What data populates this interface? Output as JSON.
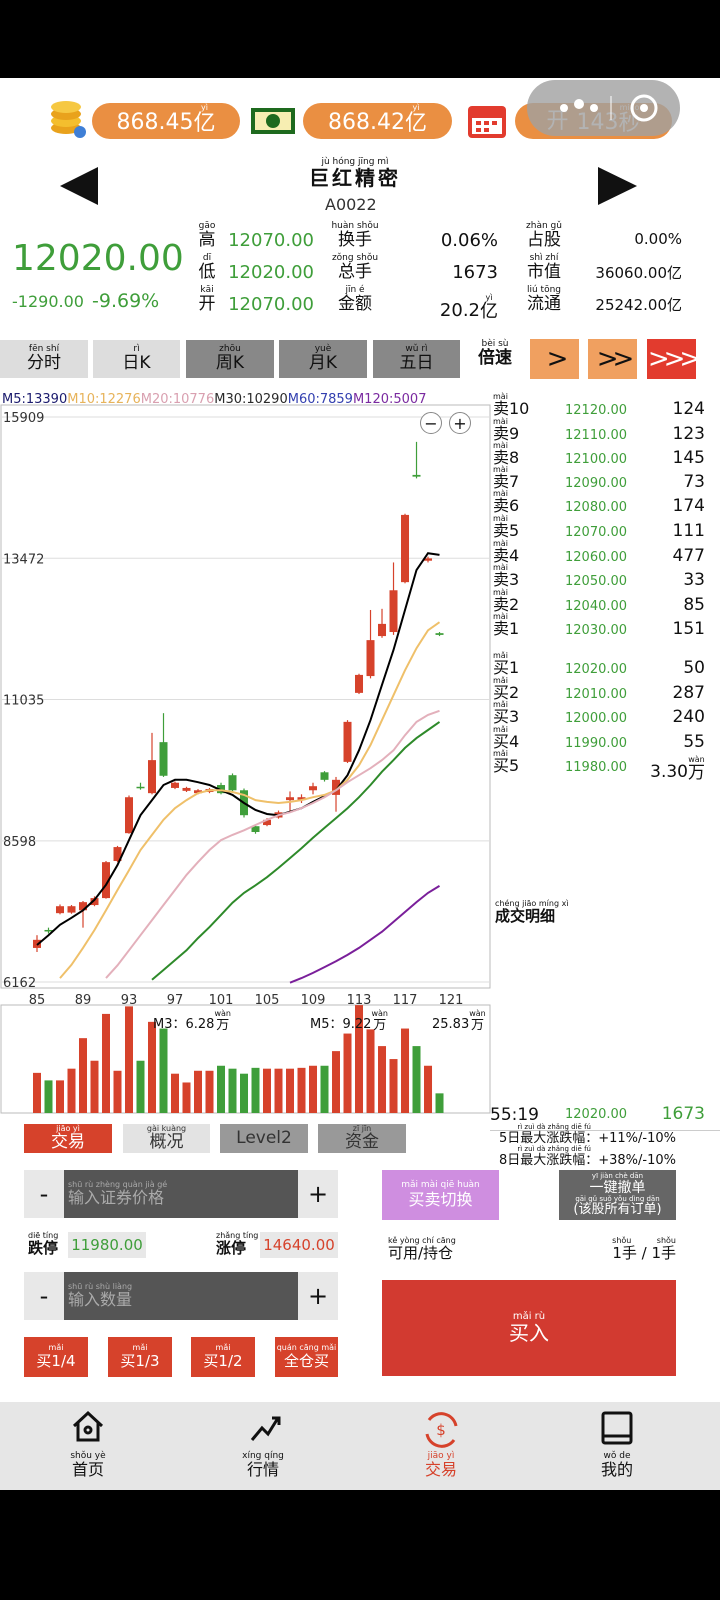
{
  "status_pills": [
    {
      "text": "868.45",
      "unit_py": "yì",
      "unit": "亿"
    },
    {
      "text": "868.42",
      "unit_py": "yì",
      "unit": "亿"
    },
    {
      "prefix": "开",
      "text": "143",
      "unit_py": "miǎo",
      "unit": "秒"
    }
  ],
  "stock": {
    "py": "jù hóng jīng mì",
    "text": "巨红精密",
    "code": "A0022"
  },
  "quote": {
    "price": "12020.00",
    "change": "-1290.00",
    "change_pct": "-9.69%",
    "stats": [
      [
        {
          "py": "gāo",
          "text": "高",
          "value": "12070.00"
        },
        {
          "py": "huàn shǒu",
          "text": "换手",
          "value": "0.06%"
        },
        {
          "py": "zhàn gǔ",
          "text": "占股",
          "value": "0.00%"
        }
      ],
      [
        {
          "py": "dī",
          "text": "低",
          "value": "12020.00"
        },
        {
          "py": "zǒng shǒu",
          "text": "总手",
          "value": "1673"
        },
        {
          "py": "shì zhí",
          "text": "市值",
          "value": "36060.00亿"
        }
      ],
      [
        {
          "py": "kāi",
          "text": "开",
          "value": "12070.00"
        },
        {
          "py": "jīn é",
          "text": "金额",
          "value": "20.2",
          "unit_py": "yì",
          "unit": "亿"
        },
        {
          "py": "liú tōng",
          "text": "流通",
          "value": "25242.00亿"
        }
      ]
    ]
  },
  "tabs": [
    {
      "py": "fēn shí",
      "text": "分时"
    },
    {
      "py": "rì",
      "text": "日K"
    },
    {
      "py": "zhōu",
      "text": "周K"
    },
    {
      "py": "yuè",
      "text": "月K"
    },
    {
      "py": "wǔ rì",
      "text": "五日"
    }
  ],
  "speed": {
    "py": "bèi sù",
    "text": "倍速"
  },
  "speed_buttons": [
    ">",
    ">>",
    ">>>"
  ],
  "zoom_buttons": [
    "−",
    "+"
  ],
  "chart_data": [
    {
      "type": "candlestick",
      "ma_legend": [
        {
          "text": "M5:13390",
          "color": "#1b1b6e"
        },
        {
          "text": "M10:12276",
          "color": "#e7b35a"
        },
        {
          "text": "M20:10776",
          "color": "#d9a0b0"
        },
        {
          "text": "M30:10290",
          "color": "#2a2a2a"
        },
        {
          "text": "M60:7859",
          "color": "#3340b0"
        },
        {
          "text": "M120:5007",
          "color": "#7a2aa0"
        }
      ],
      "up_color": "#d6422b",
      "down_color": "#3f9e3a",
      "grid": true,
      "xlim": [
        81.87,
        124.39
      ],
      "xticks": [
        85,
        89,
        93,
        97,
        101,
        105,
        109,
        113,
        117,
        121
      ],
      "ylim": [
        6059,
        16116
      ],
      "yticks": [
        6162,
        8598,
        11035,
        13472,
        15909
      ],
      "x": [
        85,
        86,
        87,
        88,
        89,
        90,
        91,
        92,
        93,
        94,
        95,
        96,
        97,
        98,
        99,
        100,
        101,
        102,
        103,
        104,
        105,
        106,
        107,
        108,
        109,
        110,
        111,
        112,
        113,
        114,
        115,
        116,
        117,
        118,
        119,
        120
      ],
      "open": [
        6750,
        7060,
        7350,
        7360,
        7400,
        7490,
        7610,
        8250,
        8730,
        9530,
        9420,
        10300,
        9510,
        9460,
        9420,
        9440,
        9560,
        9730,
        9470,
        8850,
        8870,
        9000,
        9300,
        9300,
        9470,
        9780,
        9390,
        9960,
        11150,
        11440,
        12130,
        12200,
        13060,
        14910,
        13430,
        12180
      ],
      "high": [
        6970,
        7100,
        7500,
        7490,
        7560,
        7640,
        8250,
        8510,
        9380,
        9600,
        10460,
        10800,
        9620,
        9530,
        9490,
        9510,
        9600,
        9760,
        9500,
        8870,
        8990,
        9120,
        9450,
        9400,
        9600,
        9800,
        9700,
        10680,
        11480,
        12580,
        12600,
        13400,
        14240,
        15480,
        13500,
        12200
      ],
      "low": [
        6680,
        7000,
        7330,
        7340,
        7100,
        7470,
        7600,
        8230,
        8720,
        9480,
        9400,
        9700,
        9490,
        9440,
        9400,
        9420,
        9400,
        9450,
        9000,
        8720,
        8850,
        8980,
        9100,
        9250,
        9400,
        9620,
        9100,
        9940,
        11130,
        11400,
        12100,
        12150,
        13040,
        14850,
        13400,
        12130
      ],
      "close": [
        6890,
        7050,
        7470,
        7470,
        7540,
        7610,
        8230,
        8490,
        9350,
        9520,
        9990,
        9720,
        9600,
        9510,
        9470,
        9490,
        9420,
        9470,
        9040,
        8750,
        8960,
        9090,
        9350,
        9350,
        9540,
        9650,
        9650,
        10650,
        11460,
        12060,
        12340,
        12920,
        14220,
        14880,
        13470,
        12150
      ],
      "series": [
        {
          "name": "M5",
          "color": "#000000",
          "values": [
            6800,
            6970,
            7150,
            7270,
            7400,
            7580,
            7840,
            8180,
            8610,
            9040,
            9300,
            9560,
            9650,
            9650,
            9610,
            9560,
            9470,
            9390,
            9250,
            9130,
            9060,
            9040,
            9100,
            9160,
            9270,
            9370,
            9470,
            9730,
            10160,
            10680,
            11290,
            11890,
            12580,
            13270,
            13560,
            13530
          ]
        },
        {
          "name": "M10",
          "color": "#efc06a",
          "values": [
            null,
            null,
            6230,
            6460,
            6750,
            7060,
            7400,
            7750,
            8090,
            8440,
            8700,
            8960,
            9160,
            9300,
            9420,
            9470,
            9470,
            9440,
            9390,
            9300,
            9270,
            9250,
            9270,
            9300,
            9350,
            9390,
            9470,
            9650,
            9900,
            10250,
            10680,
            11110,
            11540,
            11920,
            12230,
            12370
          ]
        },
        {
          "name": "M20",
          "color": "#e3b0bb",
          "values": [
            null,
            null,
            null,
            null,
            null,
            null,
            6230,
            6450,
            6710,
            6970,
            7230,
            7490,
            7750,
            8010,
            8230,
            8440,
            8610,
            8700,
            8780,
            8870,
            8960,
            9040,
            9090,
            9160,
            9250,
            9350,
            9470,
            9610,
            9730,
            9850,
            9990,
            10160,
            10420,
            10650,
            10770,
            10840
          ]
        },
        {
          "name": "M30",
          "color": "#2e8a2a",
          "values": [
            null,
            null,
            null,
            null,
            null,
            null,
            null,
            null,
            null,
            null,
            6200,
            6370,
            6540,
            6710,
            6920,
            7110,
            7320,
            7530,
            7700,
            7830,
            7970,
            8130,
            8300,
            8470,
            8650,
            8820,
            8990,
            9160,
            9350,
            9560,
            9790,
            9990,
            10200,
            10370,
            10510,
            10650
          ]
        },
        {
          "name": "M60",
          "color": "#7a1f9a",
          "values": [
            null,
            null,
            null,
            null,
            null,
            null,
            null,
            null,
            null,
            null,
            null,
            null,
            null,
            null,
            null,
            null,
            null,
            null,
            null,
            null,
            null,
            null,
            6150,
            6230,
            6320,
            6420,
            6520,
            6630,
            6750,
            6890,
            7030,
            7200,
            7370,
            7540,
            7700,
            7820
          ]
        }
      ]
    },
    {
      "type": "bar",
      "up_color": "#d6422b",
      "down_color": "#3f9e3a",
      "xlim": [
        81.87,
        124.39
      ],
      "ylim": [
        0,
        25.83
      ],
      "labels": [
        {
          "text": "M3：6.28",
          "unit_py": "wàn",
          "unit": "万"
        },
        {
          "text": "M5：9.22",
          "unit_py": "wàn",
          "unit": "万"
        },
        {
          "text": "25.83",
          "unit_py": "wàn",
          "unit": "万"
        }
      ],
      "x": [
        85,
        86,
        87,
        88,
        89,
        90,
        91,
        92,
        93,
        94,
        95,
        96,
        97,
        98,
        99,
        100,
        101,
        102,
        103,
        104,
        105,
        106,
        107,
        108,
        109,
        110,
        111,
        112,
        113,
        114,
        115,
        116,
        117,
        118,
        119,
        120
      ],
      "values": [
        9.6,
        7.8,
        7.8,
        10.6,
        17.9,
        12.5,
        23.7,
        10.1,
        25.5,
        12.5,
        21.8,
        20.2,
        9.4,
        7.3,
        10.1,
        10.1,
        11.3,
        10.6,
        9.4,
        10.8,
        10.6,
        10.6,
        10.6,
        10.8,
        11.3,
        11.3,
        14.8,
        19.0,
        25.8,
        20.0,
        16.0,
        12.9,
        20.2,
        16.0,
        11.3,
        4.7
      ]
    }
  ],
  "order_book": {
    "sell": [
      {
        "py": "mài",
        "text": "卖10",
        "price": "12120.00",
        "volume": "124"
      },
      {
        "py": "mài",
        "text": "卖9",
        "price": "12110.00",
        "volume": "123"
      },
      {
        "py": "mài",
        "text": "卖8",
        "price": "12100.00",
        "volume": "145"
      },
      {
        "py": "mài",
        "text": "卖7",
        "price": "12090.00",
        "volume": "73"
      },
      {
        "py": "mài",
        "text": "卖6",
        "price": "12080.00",
        "volume": "174"
      },
      {
        "py": "mài",
        "text": "卖5",
        "price": "12070.00",
        "volume": "111"
      },
      {
        "py": "mài",
        "text": "卖4",
        "price": "12060.00",
        "volume": "477"
      },
      {
        "py": "mài",
        "text": "卖3",
        "price": "12050.00",
        "volume": "33"
      },
      {
        "py": "mài",
        "text": "卖2",
        "price": "12040.00",
        "volume": "85"
      },
      {
        "py": "mài",
        "text": "卖1",
        "price": "12030.00",
        "volume": "151"
      }
    ],
    "buy": [
      {
        "py": "mǎi",
        "text": "买1",
        "price": "12020.00",
        "volume": "50"
      },
      {
        "py": "mǎi",
        "text": "买2",
        "price": "12010.00",
        "volume": "287"
      },
      {
        "py": "mǎi",
        "text": "买3",
        "price": "12000.00",
        "volume": "240"
      },
      {
        "py": "mǎi",
        "text": "买4",
        "price": "11990.00",
        "volume": "55"
      },
      {
        "py": "mǎi",
        "text": "买5",
        "price": "11980.00",
        "volume": "3.30",
        "unit_py": "wàn",
        "unit": "万"
      }
    ],
    "detail": {
      "py": "chéng jiāo míng xì",
      "text": "成交明细"
    },
    "last_trade": {
      "time": "55:19",
      "price": "12020.00",
      "volume": "1673"
    },
    "limits": [
      {
        "py": "rì zuì dà zhǎng diē fú",
        "text": "5日最大涨跌幅：+11%/-10%"
      },
      {
        "py": "rì zuì dà zhǎng diē fú",
        "text": "8日最大涨跌幅：+38%/-10%"
      }
    ]
  },
  "panel_tabs": [
    {
      "py": "jiāo yì",
      "text": "交易"
    },
    {
      "py": "gài kuàng",
      "text": "概况"
    },
    {
      "text": "Level2"
    },
    {
      "py": "zī jīn",
      "text": "资金"
    }
  ],
  "trade": {
    "minus": "-",
    "plus": "+",
    "price_input": {
      "py": "shū rù zhèng quàn jià gé",
      "text": "输入证券价格"
    },
    "limit_down": {
      "py": "diē tíng",
      "text": "跌停",
      "value": "11980.00"
    },
    "limit_up": {
      "py": "zhǎng tíng",
      "text": "涨停",
      "value": "14640.00"
    },
    "qty_input": {
      "py": "shū rù shù liàng",
      "text": "输入数量"
    },
    "quick_buttons": [
      {
        "py": "mǎi",
        "text": "买1/4"
      },
      {
        "py": "mǎi",
        "text": "买1/3"
      },
      {
        "py": "mǎi",
        "text": "买1/2"
      },
      {
        "py": "quán cāng mǎi",
        "text": "全仓买"
      }
    ],
    "switch": {
      "py": "mǎi mài qiē huàn",
      "text": "买卖切换"
    },
    "cancel_all": {
      "py": "yī jiàn chè dān",
      "text": "一键撤单",
      "sub_py": "gāi gǔ suǒ yǒu dìng dān",
      "sub": "(该股所有订单)"
    },
    "available": {
      "py": "kě yòng chí cāng",
      "text": "可用/持仓"
    },
    "position": {
      "py": "shǒu          shǒu",
      "text": "1手 / 1手"
    },
    "buy": {
      "py": "mǎi rù",
      "text": "买入"
    }
  },
  "nav": [
    {
      "py": "shǒu yè",
      "text": "首页"
    },
    {
      "py": "xíng qíng",
      "text": "行情"
    },
    {
      "py": "jiāo yì",
      "text": "交易"
    },
    {
      "py": "wǒ de",
      "text": "我的"
    }
  ]
}
